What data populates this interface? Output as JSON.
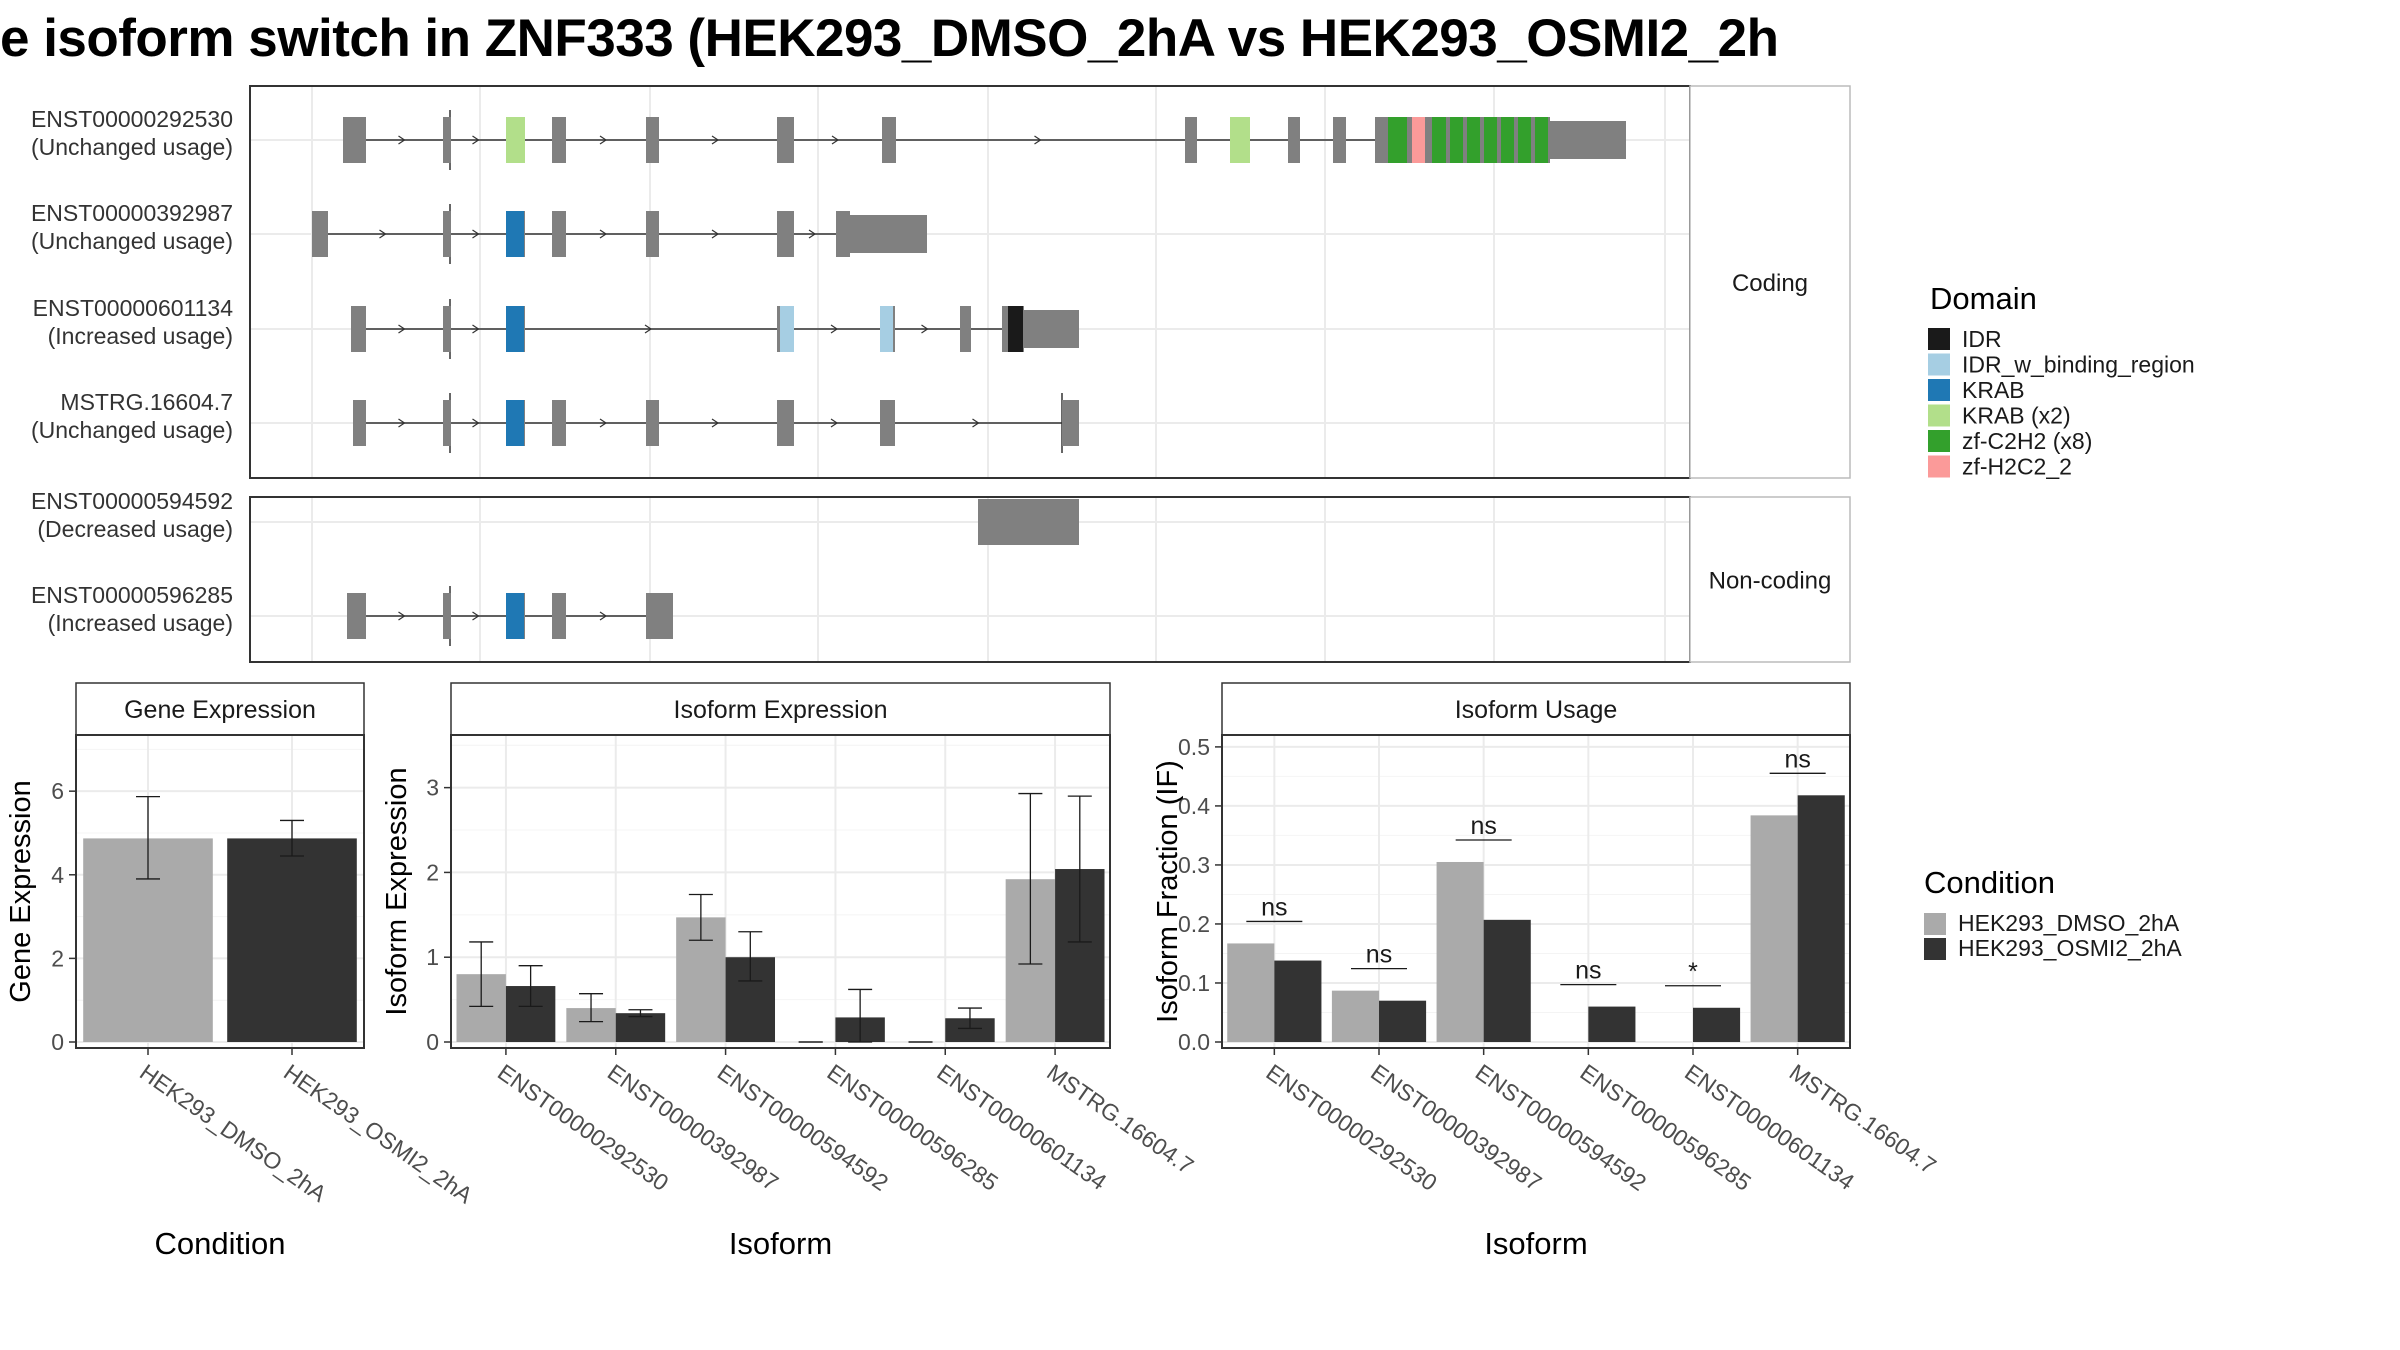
{
  "title": "e isoform switch in ZNF333 (HEK293_DMSO_2hA vs HEK293_OSMI2_2h",
  "colors": {
    "domains": {
      "IDR": "#1a1a1a",
      "IDR_w_binding_region": "#a6cee3",
      "KRAB": "#1f78b4",
      "KRAB (x2)": "#b2df8a",
      "zf-C2H2 (x8)": "#33a02c",
      "zf-H2C2_2": "#fb9a99"
    },
    "exon": "#808080",
    "conditions": {
      "HEK293_DMSO_2hA": "#aaaaaa",
      "HEK293_OSMI2_2hA": "#333333"
    },
    "panel_border": "#333333",
    "strip_fill": "#ffffff",
    "grid": "#ebebeb"
  },
  "structure": {
    "groups": [
      {
        "label": "Coding",
        "tracks": [
          {
            "id": "ENST00000292530",
            "usage": "(Unchanged usage)"
          },
          {
            "id": "ENST00000392987",
            "usage": "(Unchanged usage)"
          },
          {
            "id": "ENST00000601134",
            "usage": "(Increased usage)"
          },
          {
            "id": "MSTRG.16604.7",
            "usage": "(Unchanged usage)"
          }
        ]
      },
      {
        "label": "Non-coding",
        "tracks": [
          {
            "id": "ENST00000594592",
            "usage": "(Decreased usage)"
          },
          {
            "id": "ENST00000596285",
            "usage": "(Increased usage)"
          }
        ]
      }
    ],
    "legend_title": "Domain",
    "legend_items": [
      "IDR",
      "IDR_w_binding_region",
      "KRAB",
      "KRAB (x2)",
      "zf-C2H2 (x8)",
      "zf-H2C2_2"
    ]
  },
  "condition_legend": {
    "title": "Condition",
    "items": [
      "HEK293_DMSO_2hA",
      "HEK293_OSMI2_2hA"
    ]
  },
  "chart_data": [
    {
      "type": "bar",
      "title": "Gene Expression",
      "xlabel": "Condition",
      "ylabel": "Gene Expression",
      "ylim": [
        0,
        7.2
      ],
      "yticks": [
        "0",
        "2",
        "4",
        "6"
      ],
      "categories": [
        "HEK293_DMSO_2hA",
        "HEK293_OSMI2_2hA"
      ],
      "values": [
        4.87,
        4.87
      ],
      "error": [
        [
          3.9,
          5.87
        ],
        [
          4.45,
          5.3
        ]
      ]
    },
    {
      "type": "bar",
      "title": "Isoform Expression",
      "xlabel": "Isoform",
      "ylabel": "Isoform Expression",
      "ylim": [
        0,
        3.55
      ],
      "yticks": [
        "0",
        "1",
        "2",
        "3"
      ],
      "categories": [
        "ENST00000292530",
        "ENST00000392987",
        "ENST00000594592",
        "ENST00000596285",
        "ENST00000601134",
        "MSTRG.16604.7"
      ],
      "series": [
        {
          "name": "HEK293_DMSO_2hA",
          "values": [
            0.8,
            0.4,
            1.47,
            0,
            0,
            1.92
          ],
          "error": [
            [
              0.42,
              1.18
            ],
            [
              0.24,
              0.57
            ],
            [
              1.2,
              1.74
            ],
            [
              0,
              0
            ],
            [
              0,
              0
            ],
            [
              0.92,
              2.93
            ]
          ]
        },
        {
          "name": "HEK293_OSMI2_2hA",
          "values": [
            0.66,
            0.34,
            1.0,
            0.29,
            0.28,
            2.04
          ],
          "error": [
            [
              0.42,
              0.9
            ],
            [
              0.3,
              0.38
            ],
            [
              0.72,
              1.3
            ],
            [
              0,
              0.62
            ],
            [
              0.16,
              0.4
            ],
            [
              1.18,
              2.9
            ]
          ]
        }
      ]
    },
    {
      "type": "bar",
      "title": "Isoform Usage",
      "xlabel": "Isoform",
      "ylabel": "Isoform Fraction (IF)",
      "ylim": [
        0,
        0.51
      ],
      "yticks": [
        "0.0",
        "0.1",
        "0.2",
        "0.3",
        "0.4",
        "0.5"
      ],
      "categories": [
        "ENST00000292530",
        "ENST00000392987",
        "ENST00000594592",
        "ENST00000596285",
        "ENST00000601134",
        "MSTRG.16604.7"
      ],
      "series": [
        {
          "name": "HEK293_DMSO_2hA",
          "values": [
            0.167,
            0.087,
            0.305,
            0,
            0,
            0.384
          ]
        },
        {
          "name": "HEK293_OSMI2_2hA",
          "values": [
            0.138,
            0.07,
            0.207,
            0.06,
            0.058,
            0.418
          ]
        }
      ],
      "significance": [
        "ns",
        "ns",
        "ns",
        "ns",
        "*",
        "ns"
      ]
    }
  ]
}
